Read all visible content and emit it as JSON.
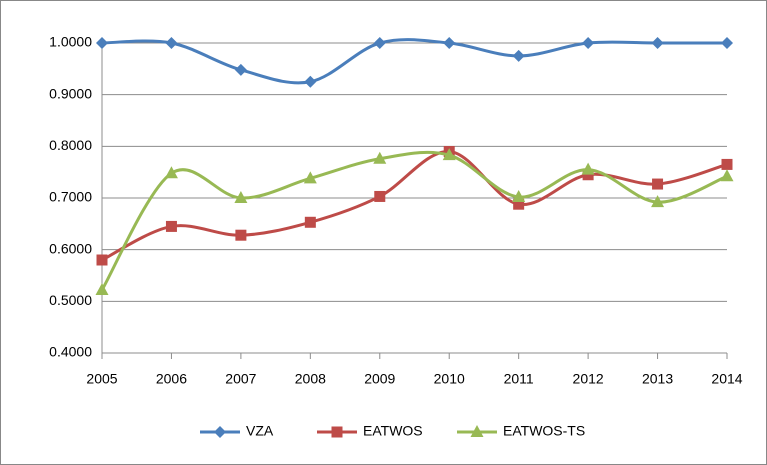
{
  "chart_data": {
    "type": "line",
    "categories": [
      "2005",
      "2006",
      "2007",
      "2008",
      "2009",
      "2010",
      "2011",
      "2012",
      "2013",
      "2014"
    ],
    "series": [
      {
        "name": "VZA",
        "color": "#4a7ebb",
        "marker": "diamond",
        "values": [
          1.0,
          1.0,
          0.948,
          0.925,
          1.0,
          1.0,
          0.975,
          1.0,
          1.0,
          1.0
        ]
      },
      {
        "name": "EATWOS",
        "color": "#be4b48",
        "marker": "square",
        "values": [
          0.58,
          0.645,
          0.628,
          0.653,
          0.703,
          0.79,
          0.688,
          0.745,
          0.727,
          0.765
        ]
      },
      {
        "name": "EATWOS-TS",
        "color": "#98b954",
        "marker": "triangle",
        "values": [
          0.522,
          0.748,
          0.7,
          0.738,
          0.776,
          0.783,
          0.702,
          0.755,
          0.692,
          0.742
        ]
      }
    ],
    "ylim": [
      0.4,
      1.0
    ],
    "yticks": [
      {
        "value": 0.4,
        "label": "0.4000"
      },
      {
        "value": 0.5,
        "label": "0.5000"
      },
      {
        "value": 0.6,
        "label": "0.6000"
      },
      {
        "value": 0.7,
        "label": "0.7000"
      },
      {
        "value": 0.8,
        "label": "0.8000"
      },
      {
        "value": 0.9,
        "label": "0.9000"
      },
      {
        "value": 1.0,
        "label": "1.0000"
      }
    ],
    "grid": true,
    "smooth": true,
    "legend": "bottom"
  }
}
